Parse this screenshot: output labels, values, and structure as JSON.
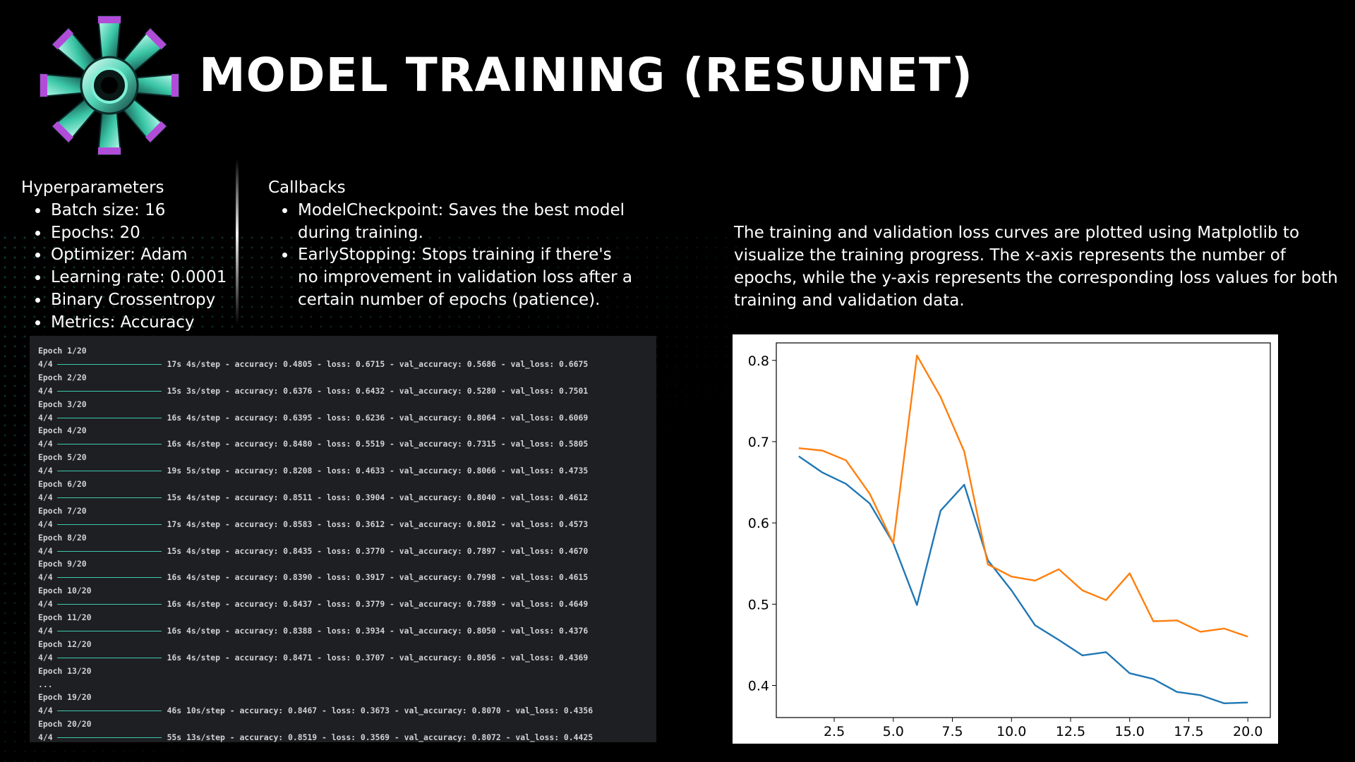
{
  "header": {
    "title": "MODEL TRAINING (RESUNET)"
  },
  "hyperparameters": {
    "heading": "Hyperparameters",
    "items": [
      "Batch size: 16",
      "Epochs: 20",
      "Optimizer: Adam",
      "Learning rate: 0.0001",
      "Binary Crossentropy",
      "Metrics: Accuracy"
    ]
  },
  "callbacks": {
    "heading": "Callbacks",
    "items": [
      "ModelCheckpoint: Saves the best model during training.",
      "EarlyStopping: Stops training if there's no improvement in validation loss after a certain number of epochs (patience)."
    ]
  },
  "description": "The training and validation loss curves are plotted using Matplotlib to visualize the training progress. The x-axis represents the number of epochs, while the y-axis represents the corresponding loss values for both training and validation data.",
  "log": [
    {
      "kind": "epoch",
      "text": "Epoch 1/20"
    },
    {
      "kind": "step",
      "steps": "4/4",
      "metrics": "17s 4s/step - accuracy: 0.4805 - loss: 0.6715 - val_accuracy: 0.5686 - val_loss: 0.6675"
    },
    {
      "kind": "epoch",
      "text": "Epoch 2/20"
    },
    {
      "kind": "step",
      "steps": "4/4",
      "metrics": "15s 3s/step - accuracy: 0.6376 - loss: 0.6432 - val_accuracy: 0.5280 - val_loss: 0.7501"
    },
    {
      "kind": "epoch",
      "text": "Epoch 3/20"
    },
    {
      "kind": "step",
      "steps": "4/4",
      "metrics": "16s 4s/step - accuracy: 0.6395 - loss: 0.6236 - val_accuracy: 0.8064 - val_loss: 0.6069"
    },
    {
      "kind": "epoch",
      "text": "Epoch 4/20"
    },
    {
      "kind": "step",
      "steps": "4/4",
      "metrics": "16s 4s/step - accuracy: 0.8480 - loss: 0.5519 - val_accuracy: 0.7315 - val_loss: 0.5805"
    },
    {
      "kind": "epoch",
      "text": "Epoch 5/20"
    },
    {
      "kind": "step",
      "steps": "4/4",
      "metrics": "19s 5s/step - accuracy: 0.8208 - loss: 0.4633 - val_accuracy: 0.8066 - val_loss: 0.4735"
    },
    {
      "kind": "epoch",
      "text": "Epoch 6/20"
    },
    {
      "kind": "step",
      "steps": "4/4",
      "metrics": "15s 4s/step - accuracy: 0.8511 - loss: 0.3904 - val_accuracy: 0.8040 - val_loss: 0.4612"
    },
    {
      "kind": "epoch",
      "text": "Epoch 7/20"
    },
    {
      "kind": "step",
      "steps": "4/4",
      "metrics": "17s 4s/step - accuracy: 0.8583 - loss: 0.3612 - val_accuracy: 0.8012 - val_loss: 0.4573"
    },
    {
      "kind": "epoch",
      "text": "Epoch 8/20"
    },
    {
      "kind": "step",
      "steps": "4/4",
      "metrics": "15s 4s/step - accuracy: 0.8435 - loss: 0.3770 - val_accuracy: 0.7897 - val_loss: 0.4670"
    },
    {
      "kind": "epoch",
      "text": "Epoch 9/20"
    },
    {
      "kind": "step",
      "steps": "4/4",
      "metrics": "16s 4s/step - accuracy: 0.8390 - loss: 0.3917 - val_accuracy: 0.7998 - val_loss: 0.4615"
    },
    {
      "kind": "epoch",
      "text": "Epoch 10/20"
    },
    {
      "kind": "step",
      "steps": "4/4",
      "metrics": "16s 4s/step - accuracy: 0.8437 - loss: 0.3779 - val_accuracy: 0.7889 - val_loss: 0.4649"
    },
    {
      "kind": "epoch",
      "text": "Epoch 11/20"
    },
    {
      "kind": "step",
      "steps": "4/4",
      "metrics": "16s 4s/step - accuracy: 0.8388 - loss: 0.3934 - val_accuracy: 0.8050 - val_loss: 0.4376"
    },
    {
      "kind": "epoch",
      "text": "Epoch 12/20"
    },
    {
      "kind": "step",
      "steps": "4/4",
      "metrics": "16s 4s/step - accuracy: 0.8471 - loss: 0.3707 - val_accuracy: 0.8056 - val_loss: 0.4369"
    },
    {
      "kind": "epoch",
      "text": "Epoch 13/20"
    },
    {
      "kind": "epoch",
      "text": "..."
    },
    {
      "kind": "epoch",
      "text": "Epoch 19/20"
    },
    {
      "kind": "step",
      "steps": "4/4",
      "metrics": "46s 10s/step - accuracy: 0.8467 - loss: 0.3673 - val_accuracy: 0.8070 - val_loss: 0.4356"
    },
    {
      "kind": "epoch",
      "text": "Epoch 20/20"
    },
    {
      "kind": "step",
      "steps": "4/4",
      "metrics": "55s 13s/step - accuracy: 0.8519 - loss: 0.3569 - val_accuracy: 0.8072 - val_loss: 0.4425"
    }
  ],
  "chart_data": {
    "type": "line",
    "title": "",
    "xlabel": "",
    "ylabel": "",
    "xlim": [
      0.05,
      20.95
    ],
    "ylim": [
      0.3605,
      0.8215
    ],
    "xticks": [
      2.5,
      5.0,
      7.5,
      10.0,
      12.5,
      15.0,
      17.5,
      20.0
    ],
    "yticks": [
      0.4,
      0.5,
      0.6,
      0.7,
      0.8
    ],
    "grid": false,
    "legend": "none",
    "x": [
      1,
      2,
      3,
      4,
      5,
      6,
      7,
      8,
      9,
      10,
      11,
      12,
      13,
      14,
      15,
      16,
      17,
      18,
      19,
      20
    ],
    "series": [
      {
        "color": "#1f77b4",
        "values": [
          0.682,
          0.662,
          0.648,
          0.624,
          0.575,
          0.499,
          0.615,
          0.647,
          0.554,
          0.517,
          0.474,
          0.456,
          0.437,
          0.441,
          0.415,
          0.408,
          0.392,
          0.388,
          0.378,
          0.379
        ]
      },
      {
        "color": "#ff7f0e",
        "values": [
          0.692,
          0.689,
          0.677,
          0.636,
          0.575,
          0.806,
          0.755,
          0.688,
          0.549,
          0.534,
          0.529,
          0.543,
          0.517,
          0.505,
          0.538,
          0.479,
          0.48,
          0.466,
          0.47,
          0.46
        ]
      }
    ]
  },
  "colors": {
    "background": "#000000",
    "terminal_bg": "#1e1f22",
    "progress_bar": "#3ec9b0",
    "text": "#ffffff"
  }
}
